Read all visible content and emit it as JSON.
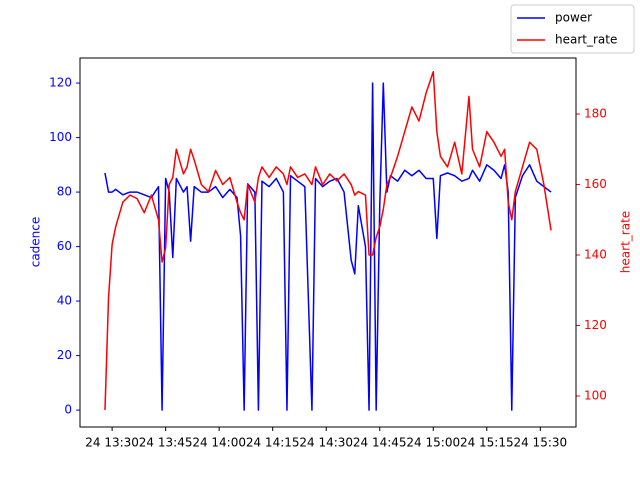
{
  "chart_data": {
    "type": "line",
    "ylabel": "cadence",
    "y2label": "heart_rate",
    "x": [
      "24 13:28",
      "24 13:29",
      "24 13:30",
      "24 13:31",
      "24 13:33",
      "24 13:35",
      "24 13:37",
      "24 13:39",
      "24 13:41",
      "24 13:43",
      "24 13:44",
      "24 13:45",
      "24 13:46",
      "24 13:47",
      "24 13:48",
      "24 13:50",
      "24 13:51",
      "24 13:52",
      "24 13:53",
      "24 13:55",
      "24 13:57",
      "24 13:59",
      "24 14:01",
      "24 14:03",
      "24 14:05",
      "24 14:06",
      "24 14:07",
      "24 14:08",
      "24 14:10",
      "24 14:11",
      "24 14:12",
      "24 14:14",
      "24 14:16",
      "24 14:18",
      "24 14:19",
      "24 14:20",
      "24 14:22",
      "24 14:24",
      "24 14:26",
      "24 14:27",
      "24 14:29",
      "24 14:31",
      "24 14:33",
      "24 14:35",
      "24 14:37",
      "24 14:38",
      "24 14:39",
      "24 14:41",
      "24 14:42",
      "24 14:43",
      "24 14:44",
      "24 14:45",
      "24 14:46",
      "24 14:47",
      "24 14:48",
      "24 14:50",
      "24 14:52",
      "24 14:54",
      "24 14:56",
      "24 14:58",
      "24 15:00",
      "24 15:01",
      "24 15:02",
      "24 15:04",
      "24 15:06",
      "24 15:08",
      "24 15:10",
      "24 15:11",
      "24 15:13",
      "24 15:15",
      "24 15:17",
      "24 15:19",
      "24 15:20",
      "24 15:21",
      "24 15:22",
      "24 15:23",
      "24 15:25",
      "24 15:27",
      "24 15:29",
      "24 15:31",
      "24 15:33"
    ],
    "series": [
      {
        "name": "power",
        "color": "#0000ff",
        "axis": "y",
        "values": [
          87,
          80,
          80,
          81,
          79,
          80,
          80,
          79,
          78,
          82,
          0,
          85,
          80,
          56,
          85,
          80,
          82,
          62,
          82,
          80,
          80,
          82,
          78,
          81,
          78,
          64,
          0,
          83,
          80,
          0,
          84,
          82,
          85,
          80,
          0,
          86,
          84,
          82,
          0,
          85,
          82,
          84,
          85,
          80,
          55,
          50,
          75,
          60,
          0,
          120,
          0,
          75,
          120,
          80,
          86,
          84,
          88,
          86,
          88,
          85,
          85,
          63,
          86,
          87,
          86,
          84,
          85,
          88,
          84,
          90,
          88,
          85,
          90,
          80,
          0,
          78,
          86,
          90,
          84,
          82,
          80
        ]
      },
      {
        "name": "heart_rate",
        "color": "#ff0000",
        "axis": "y2",
        "values": [
          96,
          128,
          143,
          148,
          155,
          157,
          156,
          152,
          157,
          150,
          138,
          142,
          160,
          162,
          170,
          163,
          165,
          170,
          167,
          160,
          158,
          164,
          160,
          162,
          155,
          152,
          150,
          160,
          155,
          162,
          165,
          162,
          165,
          163,
          160,
          165,
          162,
          163,
          160,
          165,
          160,
          163,
          161,
          163,
          160,
          157,
          158,
          157,
          140,
          140,
          145,
          148,
          153,
          160,
          162,
          168,
          175,
          182,
          178,
          186,
          192,
          175,
          168,
          165,
          172,
          163,
          185,
          170,
          165,
          175,
          172,
          168,
          170,
          155,
          150,
          158,
          165,
          172,
          170,
          160,
          147
        ]
      }
    ],
    "xlim": [
      "24 13:21",
      "24 15:40"
    ],
    "xticks": [
      "24 13:30",
      "24 13:45",
      "24 14:00",
      "24 14:15",
      "24 14:30",
      "24 14:45",
      "24 15:00",
      "24 15:15",
      "24 15:30"
    ],
    "ylim": [
      -6.2,
      129.2
    ],
    "yticks": [
      0,
      20,
      40,
      60,
      80,
      100,
      120
    ],
    "y2lim": [
      91.2,
      195.9
    ],
    "y2ticks": [
      100,
      120,
      140,
      160,
      180
    ],
    "legend": "upper right"
  }
}
